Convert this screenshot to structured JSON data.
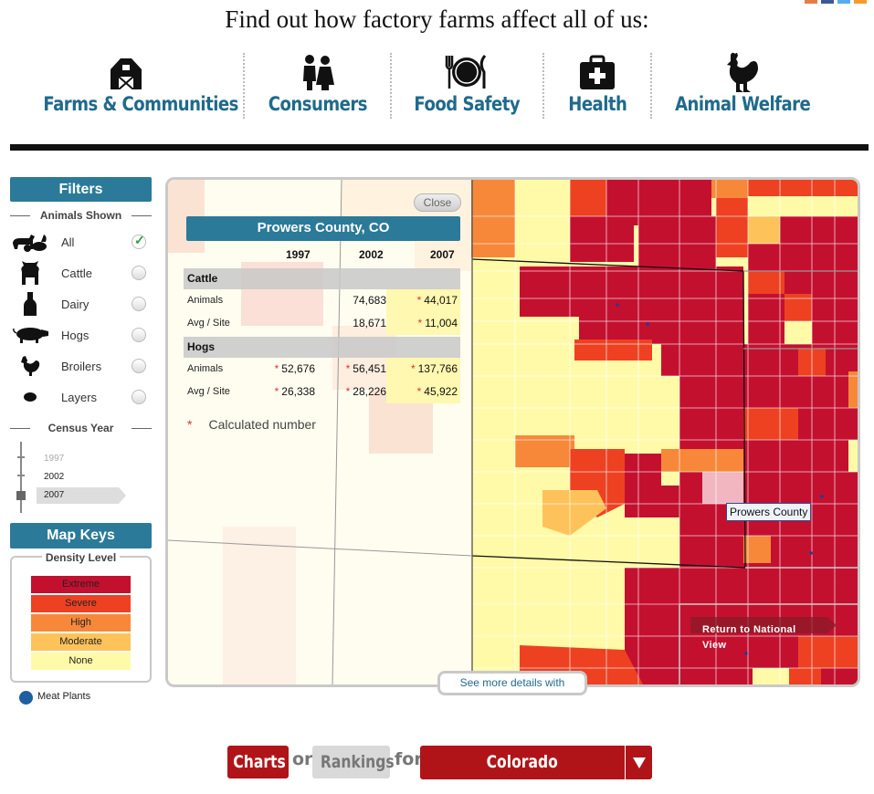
{
  "header": {
    "headline": "Find out how factory farms affect all of us:",
    "nav": [
      {
        "label": "Farms & Communities",
        "icon": "barn-icon"
      },
      {
        "label": "Consumers",
        "icon": "family-icon"
      },
      {
        "label": "Food Safety",
        "icon": "plate-icon"
      },
      {
        "label": "Health",
        "icon": "medical-kit-icon"
      },
      {
        "label": "Animal Welfare",
        "icon": "rooster-icon"
      }
    ],
    "accent": "#1f6a8c"
  },
  "sidebar": {
    "filters_title": "Filters",
    "animals_title": "Animals Shown",
    "animals": [
      {
        "label": "All",
        "icon": "farm-animals-icon",
        "checked": true
      },
      {
        "label": "Cattle",
        "icon": "cow-icon",
        "checked": false
      },
      {
        "label": "Dairy",
        "icon": "milk-bottle-icon",
        "checked": false
      },
      {
        "label": "Hogs",
        "icon": "pig-icon",
        "checked": false
      },
      {
        "label": "Broilers",
        "icon": "chicken-icon",
        "checked": false
      },
      {
        "label": "Layers",
        "icon": "egg-icon",
        "checked": false
      }
    ],
    "census_title": "Census Year",
    "years": [
      "1997",
      "2002",
      "2007"
    ],
    "selected_year": "2007",
    "map_keys_title": "Map Keys",
    "density_title": "Density Level",
    "density_levels": [
      {
        "label": "Extreme",
        "color": "#c4102f"
      },
      {
        "label": "Severe",
        "color": "#ee4122"
      },
      {
        "label": "High",
        "color": "#f7883a"
      },
      {
        "label": "Moderate",
        "color": "#fdc35a"
      },
      {
        "label": "None",
        "color": "#fffaa8"
      }
    ],
    "meat_plants_label": "Meat Plants",
    "meat_plants_color": "#1e5fa0"
  },
  "popup": {
    "close_label": "Close",
    "title": "Prowers County, CO",
    "years": [
      "1997",
      "2002",
      "2007"
    ],
    "sections": [
      {
        "name": "Cattle",
        "rows": [
          {
            "label": "Animals",
            "values": [
              "",
              "74,683",
              "44,017"
            ],
            "calculated": [
              false,
              false,
              true
            ]
          },
          {
            "label": "Avg / Site",
            "values": [
              "",
              "18,671",
              "11,004"
            ],
            "calculated": [
              false,
              false,
              true
            ]
          }
        ]
      },
      {
        "name": "Hogs",
        "rows": [
          {
            "label": "Animals",
            "values": [
              "52,676",
              "56,451",
              "137,766"
            ],
            "calculated": [
              true,
              true,
              true
            ]
          },
          {
            "label": "Avg / Site",
            "values": [
              "26,338",
              "28,226",
              "45,922"
            ],
            "calculated": [
              true,
              true,
              true
            ]
          }
        ]
      }
    ],
    "footnote_marker": "*",
    "footnote": "Calculated number"
  },
  "map": {
    "tooltip": "Prowers County",
    "return_label": "Return to National View",
    "more_details": "See more details with"
  },
  "bottom": {
    "charts_label": "Charts",
    "or_label": "or",
    "rankings_label": "Rankings",
    "for_label": "for",
    "state_value": "Colorado",
    "brand_red": "#b11418"
  }
}
